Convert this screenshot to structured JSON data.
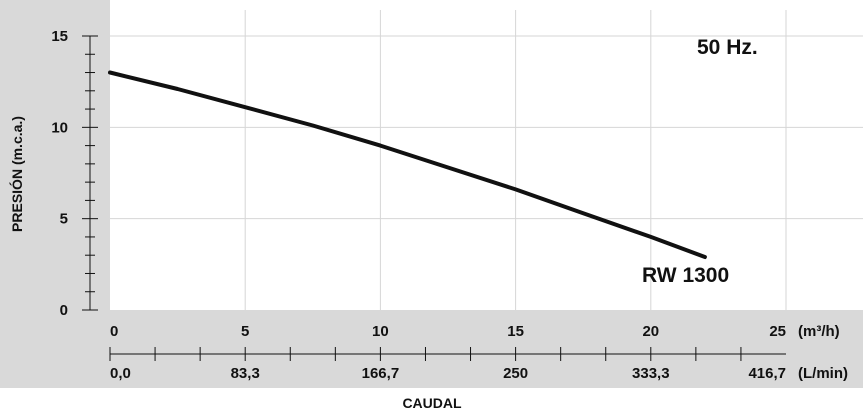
{
  "colors": {
    "panel_bg": "#d9d9d9",
    "plot_bg": "#ffffff",
    "grid": "#d6d6d6",
    "curve": "#111111",
    "text": "#111111"
  },
  "chart_data": {
    "type": "line",
    "title": "",
    "frequency_label": "50 Hz.",
    "ylabel": "PRESIÓN (m.c.a.)",
    "xlabel": "CAUDAL",
    "x_unit_primary": "(m³/h)",
    "x_unit_secondary": "(L/min)",
    "xlim": [
      0,
      25
    ],
    "ylim": [
      0,
      15
    ],
    "x_ticks_primary": [
      {
        "value": 0,
        "label": "0"
      },
      {
        "value": 5,
        "label": "5"
      },
      {
        "value": 10,
        "label": "10"
      },
      {
        "value": 15,
        "label": "15"
      },
      {
        "value": 20,
        "label": "20"
      },
      {
        "value": 25,
        "label": "25"
      }
    ],
    "x_ticks_secondary": [
      {
        "value": 0,
        "label": "0,0"
      },
      {
        "value": 5,
        "label": "83,3"
      },
      {
        "value": 10,
        "label": "166,7"
      },
      {
        "value": 15,
        "label": "250"
      },
      {
        "value": 20,
        "label": "333,3"
      },
      {
        "value": 25,
        "label": "416,7"
      }
    ],
    "y_ticks": [
      {
        "value": 0,
        "label": "0"
      },
      {
        "value": 5,
        "label": "5"
      },
      {
        "value": 10,
        "label": "10"
      },
      {
        "value": 15,
        "label": "15"
      }
    ],
    "grid": true,
    "series": [
      {
        "name": "RW 1300",
        "x": [
          0,
          2.5,
          5,
          7.5,
          10,
          12.5,
          15,
          17.5,
          20,
          22
        ],
        "y": [
          13.0,
          12.1,
          11.1,
          10.1,
          9.0,
          7.8,
          6.6,
          5.3,
          4.0,
          2.9
        ]
      }
    ]
  }
}
